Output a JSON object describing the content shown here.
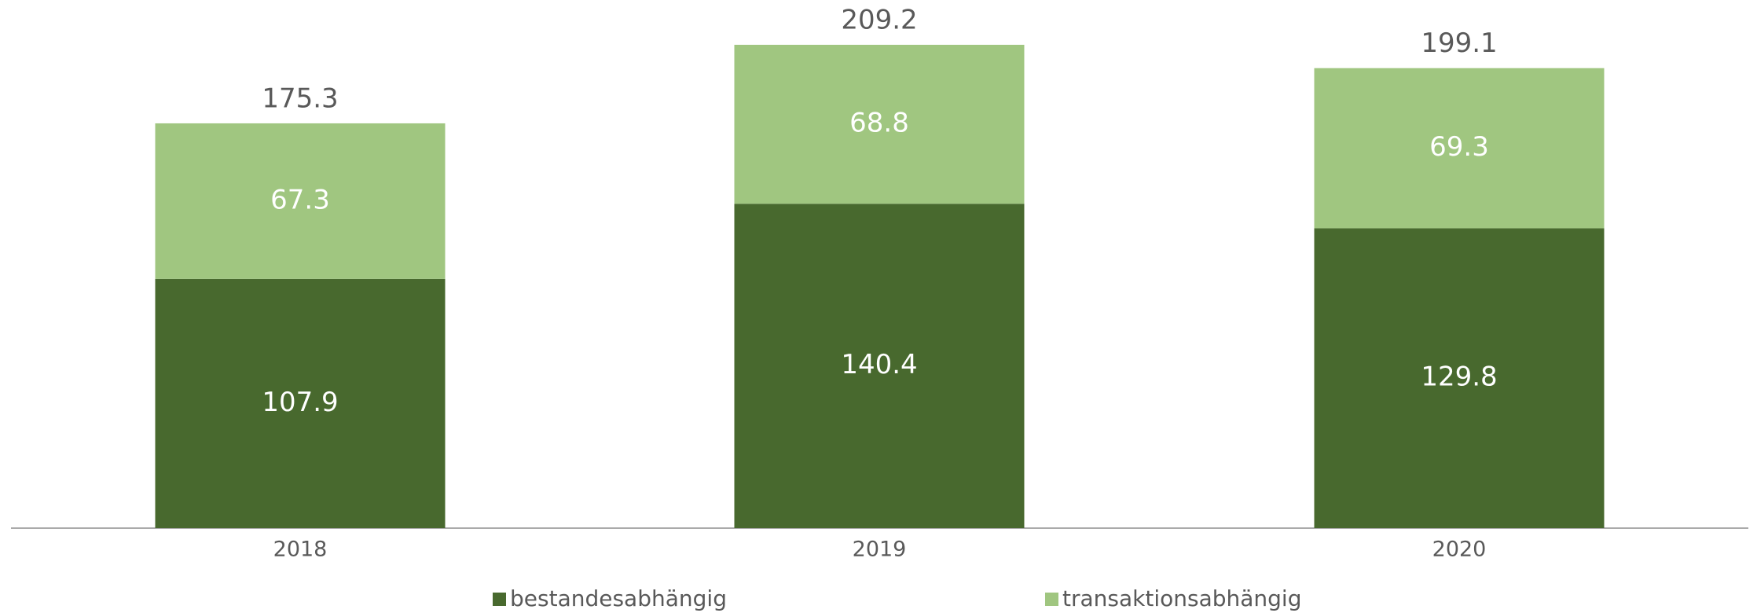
{
  "chart_data": {
    "type": "stacked_bar",
    "categories": [
      "2018",
      "2019",
      "2020"
    ],
    "series": [
      {
        "name": "bestandesabhängig",
        "color": "#48692e",
        "values": [
          107.9,
          140.4,
          129.8
        ]
      },
      {
        "name": "transaktionsabhängig",
        "color": "#a0c680",
        "values": [
          67.3,
          68.8,
          69.3
        ]
      }
    ],
    "totals": [
      175.3,
      209.2,
      199.1
    ]
  }
}
